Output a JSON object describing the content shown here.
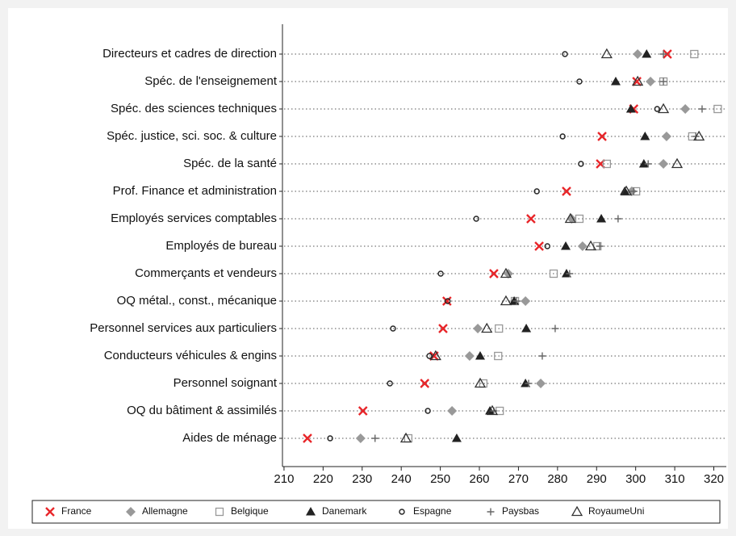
{
  "chart_data": {
    "type": "dot",
    "categories": [
      "Directeurs et cadres de direction",
      "Spéc. de l'enseignement",
      "Spéc. des sciences techniques",
      "Spéc. justice, sci. soc. & culture",
      "Spéc. de la santé",
      "Prof. Finance et administration",
      "Employés services comptables",
      "Employés de bureau",
      "Commerçants et vendeurs",
      "OQ métal., const., mécanique",
      "Personnel services aux particuliers",
      "Conducteurs véhicules & engins",
      "Personnel soignant",
      "OQ du bâtiment & assimilés",
      "Aides de ménage"
    ],
    "series": [
      {
        "name": "France",
        "color": "#e8262a",
        "marker": "x",
        "values": [
          308.1,
          300.3,
          299.5,
          291.4,
          291.0,
          282.3,
          273.2,
          275.3,
          263.7,
          251.7,
          250.7,
          248.4,
          246.0,
          230.2,
          216.0
        ]
      },
      {
        "name": "Allemagne",
        "color": "#999999",
        "marker": "diamond",
        "values": [
          300.5,
          303.8,
          312.7,
          307.9,
          307.1,
          299.0,
          283.6,
          286.4,
          267.4,
          271.8,
          259.6,
          257.5,
          275.7,
          253.0,
          229.6
        ]
      },
      {
        "name": "Belgique",
        "color": "#999999",
        "marker": "square-open",
        "values": [
          315.0,
          307.1,
          321.0,
          314.5,
          292.6,
          300.1,
          285.6,
          290.2,
          279.0,
          269.1,
          265.0,
          264.8,
          261.0,
          265.2,
          241.8
        ]
      },
      {
        "name": "Danemark",
        "color": "#222222",
        "marker": "triangle",
        "values": [
          302.8,
          294.9,
          298.8,
          302.4,
          302.1,
          297.2,
          291.2,
          282.1,
          282.3,
          268.9,
          272.0,
          260.2,
          271.8,
          262.7,
          254.2
        ]
      },
      {
        "name": "Espagne",
        "color": "#222222",
        "marker": "circle-open",
        "values": [
          281.9,
          285.6,
          305.5,
          281.3,
          286.0,
          274.7,
          259.2,
          277.4,
          250.1,
          251.9,
          237.9,
          247.2,
          237.1,
          246.8,
          221.8
        ]
      },
      {
        "name": "Paysbas",
        "color": "#666666",
        "marker": "plus",
        "values": [
          307.1,
          307.1,
          317.0,
          315.4,
          303.2,
          299.5,
          295.5,
          290.8,
          283.1,
          269.5,
          279.4,
          276.1,
          272.6,
          263.7,
          233.3
        ]
      },
      {
        "name": "RoyaumeUni",
        "color": "#333333",
        "marker": "triangle-open",
        "values": [
          292.6,
          300.5,
          307.1,
          316.2,
          310.6,
          297.6,
          283.3,
          288.5,
          266.8,
          266.8,
          261.9,
          248.8,
          260.2,
          263.3,
          241.2
        ]
      }
    ],
    "xlim": [
      209.6,
      323.2
    ],
    "xticks": [
      210,
      220,
      230,
      240,
      250,
      260,
      270,
      280,
      290,
      300,
      310,
      320
    ],
    "legend": "bottom"
  }
}
